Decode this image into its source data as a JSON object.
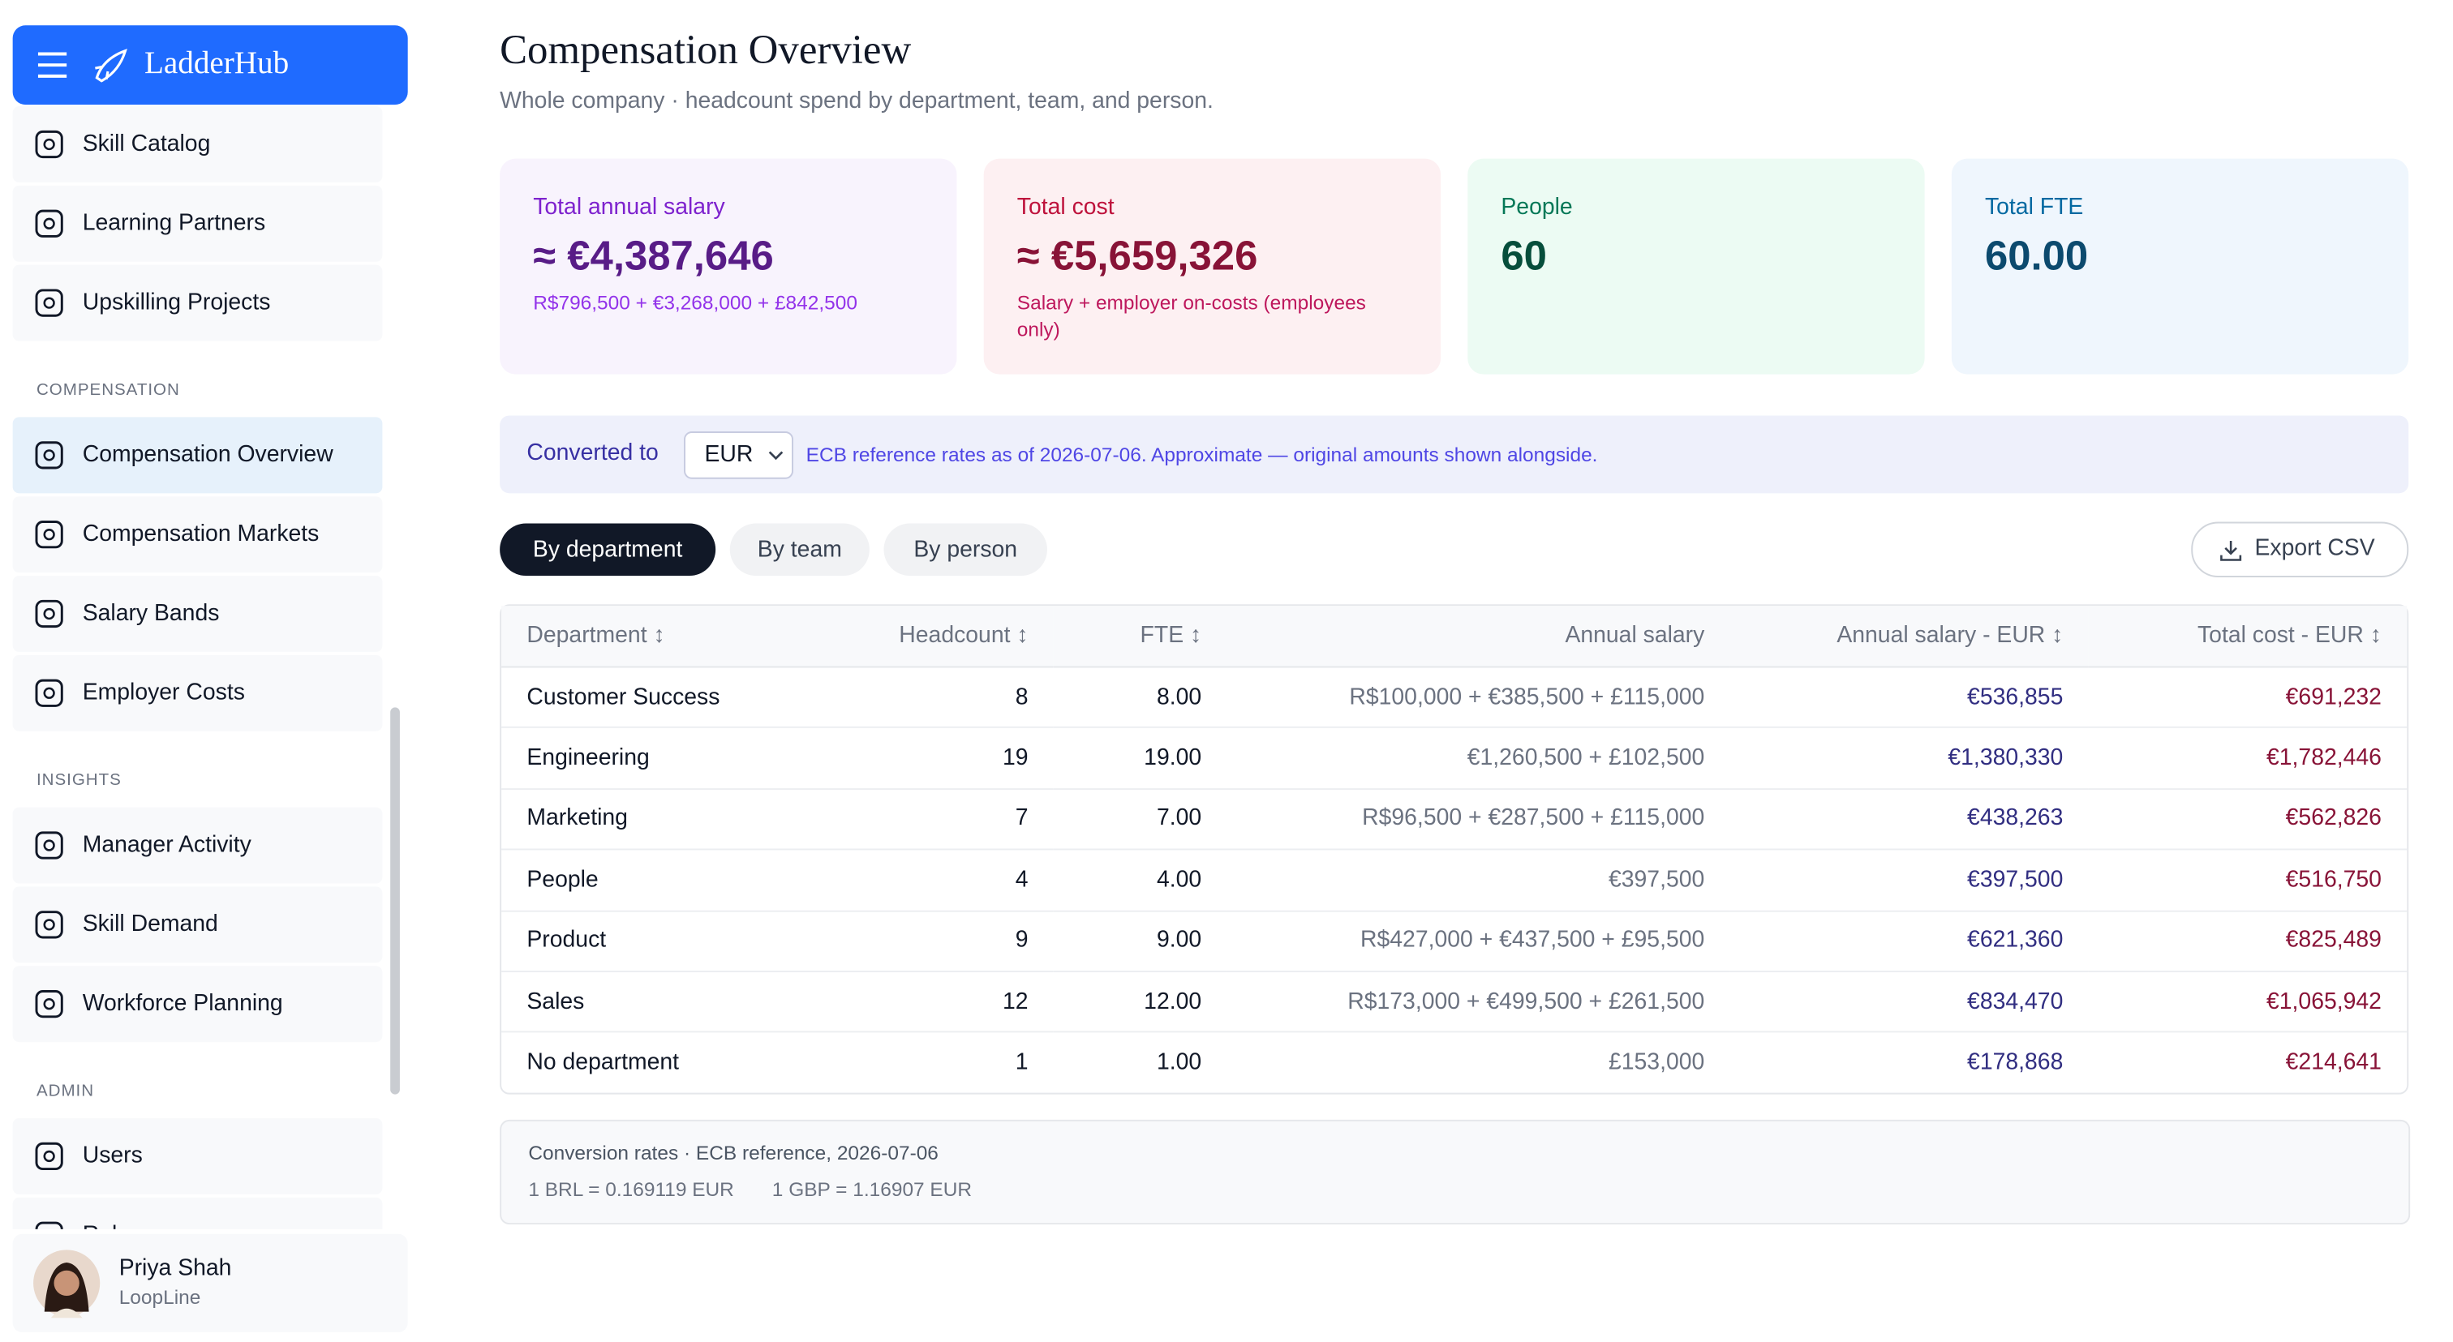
{
  "app": {
    "name": "LadderHub"
  },
  "sidebar": {
    "groups": [
      {
        "items": [
          "Skill Catalog",
          "Learning Partners",
          "Upskilling Projects"
        ]
      },
      {
        "title": "COMPENSATION",
        "items": [
          "Compensation Overview",
          "Compensation Markets",
          "Salary Bands",
          "Employer Costs"
        ]
      },
      {
        "title": "INSIGHTS",
        "items": [
          "Manager Activity",
          "Skill Demand",
          "Workforce Planning"
        ]
      },
      {
        "title": "ADMIN",
        "items": [
          "Users",
          "Roles"
        ]
      }
    ],
    "user": {
      "name": "Priya Shah",
      "org": "LoopLine"
    }
  },
  "header": {
    "title": "Compensation Overview",
    "subtitle": "Whole company · headcount spend by department, team, and person."
  },
  "cards": [
    {
      "label": "Total annual salary",
      "value": "≈ €4,387,646",
      "note": "R$796,500 + €3,268,000 + £842,500"
    },
    {
      "label": "Total cost",
      "value": "≈ €5,659,326",
      "note": "Salary + employer on-costs (employees only)"
    },
    {
      "label": "People",
      "value": "60"
    },
    {
      "label": "Total FTE",
      "value": "60.00"
    }
  ],
  "currency_bar": {
    "label": "Converted to",
    "currency": "EUR",
    "note": "ECB reference rates as of 2026-07-06. Approximate — original amounts shown alongside."
  },
  "tabs": [
    "By department",
    "By team",
    "By person"
  ],
  "export": "Export CSV",
  "table": {
    "columns": [
      "Department ↕",
      "Headcount ↕",
      "FTE ↕",
      "Annual salary",
      "Annual salary - EUR ↕",
      "Total cost - EUR ↕"
    ],
    "rows": [
      [
        "Customer Success",
        8,
        "8.00",
        "R$100,000 + €385,500 + £115,000",
        "€536,855",
        "€691,232"
      ],
      [
        "Engineering",
        19,
        "19.00",
        "€1,260,500 + £102,500",
        "€1,380,330",
        "€1,782,446"
      ],
      [
        "Marketing",
        7,
        "7.00",
        "R$96,500 + €287,500 + £115,000",
        "€438,263",
        "€562,826"
      ],
      [
        "People",
        4,
        "4.00",
        "€397,500",
        "€397,500",
        "€516,750"
      ],
      [
        "Product",
        9,
        "9.00",
        "R$427,000 + €437,500 + £95,500",
        "€621,360",
        "€825,489"
      ],
      [
        "Sales",
        12,
        "12.00",
        "R$173,000 + €499,500 + £261,500",
        "€834,470",
        "€1,065,942"
      ],
      [
        "No department",
        1,
        "1.00",
        "£153,000",
        "€178,868",
        "€214,641"
      ]
    ]
  },
  "footnote": {
    "title": "Conversion rates · ECB reference, 2026-07-06",
    "rates": [
      "1 BRL = 0.169119 EUR",
      "1 GBP = 1.16907 EUR"
    ]
  }
}
